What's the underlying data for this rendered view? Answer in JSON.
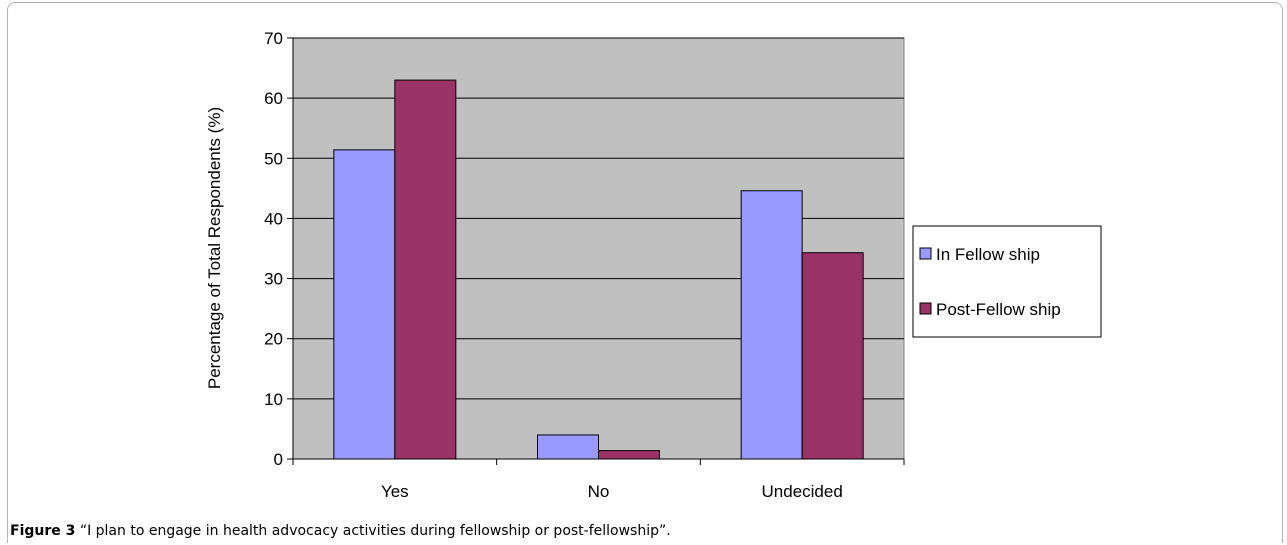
{
  "chart_data": {
    "type": "bar",
    "categories": [
      "Yes",
      "No",
      "Undecided"
    ],
    "series": [
      {
        "name": "In Fellow ship",
        "values": [
          51.4,
          4.0,
          44.6
        ],
        "color": "#9999ff"
      },
      {
        "name": "Post-Fellow ship",
        "values": [
          63.0,
          1.4,
          34.3
        ],
        "color": "#993366"
      }
    ],
    "ylabel": "Percentage of Total Respondents (%)",
    "xlabel": "",
    "ylim": [
      0,
      70
    ],
    "yticks": [
      0,
      10,
      20,
      30,
      40,
      50,
      60,
      70
    ],
    "grid": true,
    "legend": "right",
    "plot_background": "#c0c0c0"
  },
  "caption": {
    "label": "Figure 3",
    "text": " “I plan to engage in health advocacy activities during fellowship or post-fellowship”."
  }
}
